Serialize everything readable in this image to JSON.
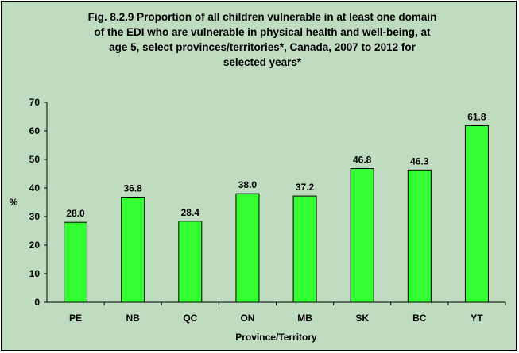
{
  "chart_data": {
    "type": "bar",
    "title": "Fig. 8.2.9 Proportion of all children vulnerable in at least one domain of the EDI who are vulnerable in physical health and well-being, at age 5, select provinces/territories*, Canada, 2007 to 2012 for selected years*",
    "title_lines": [
      "Fig. 8.2.9 Proportion of all children vulnerable in at least one domain",
      "of the EDI who are vulnerable in physical health and well-being, at",
      "age 5, select provinces/territories*, Canada, 2007 to 2012 for",
      "selected years*"
    ],
    "xlabel": "Province/Territory",
    "ylabel": "%",
    "categories": [
      "PE",
      "NB",
      "QC",
      "ON",
      "MB",
      "SK",
      "BC",
      "YT"
    ],
    "values": [
      28.0,
      36.8,
      28.4,
      38.0,
      37.2,
      46.8,
      46.3,
      61.8
    ],
    "data_labels": [
      "28.0",
      "36.8",
      "28.4",
      "38.0",
      "37.2",
      "46.8",
      "46.3",
      "61.8"
    ],
    "ylim": [
      0,
      70
    ],
    "yticks": [
      "0",
      "10",
      "20",
      "30",
      "40",
      "50",
      "60",
      "70"
    ],
    "grid": false,
    "legend": "none",
    "colors": {
      "bar": "#33ff33",
      "bar_stroke": "#000000",
      "background": "#c0dcc0"
    }
  }
}
